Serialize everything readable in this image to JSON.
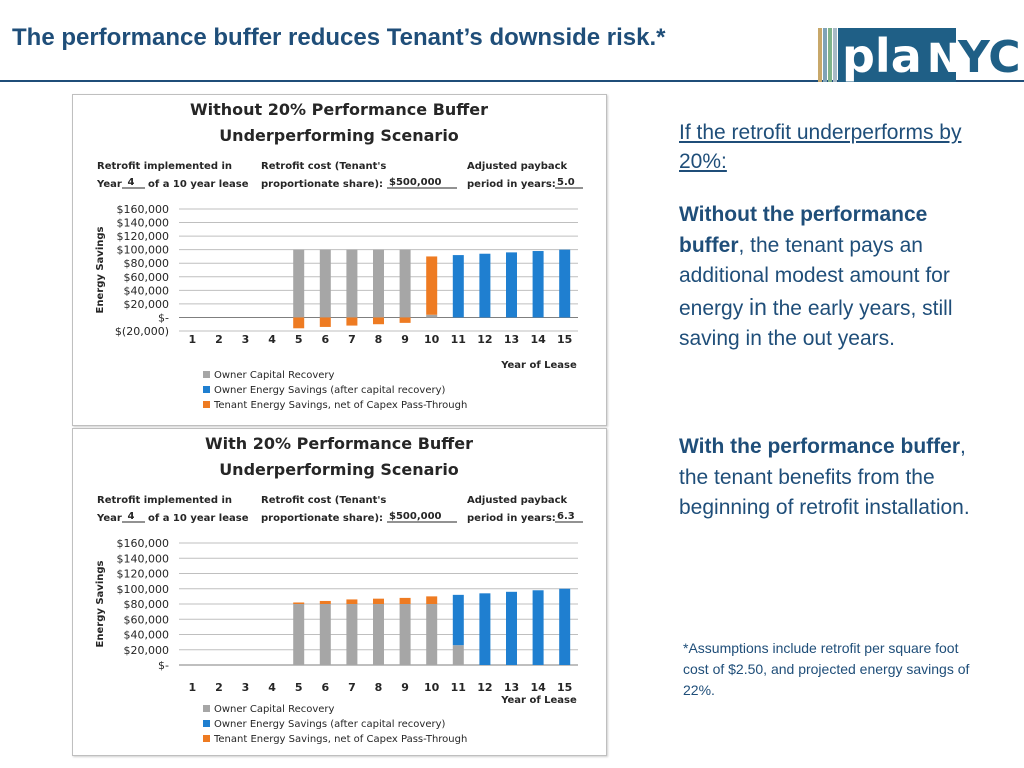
{
  "slide": {
    "title": "The performance buffer reduces Tenant’s downside risk.*",
    "logo": {
      "part1": "pla",
      "part2": "N",
      "part3": "YC",
      "stripe_colors": [
        "#c8a86a",
        "#7fa3b8",
        "#7fb28a",
        "#a8b9c6"
      ],
      "box_color": "#1f5f86"
    }
  },
  "side_text": {
    "question": "If the retrofit underperforms by 20%:",
    "para1_bold": "Without the performance buffer",
    "para1_a": ", the tenant pays an additional modest amount for energy ",
    "para1_in": "in",
    "para1_b": " the early years, still saving in the out years.",
    "para2_bold": "With the performance buffer",
    "para2_rest": ", the tenant benefits from the beginning of retrofit installation.",
    "footnote": "*Assumptions include retrofit per square foot cost of $2.50, and projected energy savings of 22%."
  },
  "chart_data": [
    {
      "type": "bar",
      "stacked": true,
      "title_line1": "Without 20% Performance Buffer",
      "title_line2": "Underperforming Scenario",
      "info": {
        "c1_l1": "Retrofit implemented in",
        "c1_l2a": "Year",
        "c1_value": "4",
        "c1_l2b": "of a 10 year lease",
        "c2_l1": "Retrofit cost (Tenant's",
        "c2_l2a": "proportionate share):",
        "c2_value": "$500,000",
        "c3_l1": "Adjusted payback",
        "c3_l2a": "period in years:",
        "c3_value": "5.0"
      },
      "ylabel": "Energy Savings",
      "xlabel": "Year of Lease",
      "categories": [
        "1",
        "2",
        "3",
        "4",
        "5",
        "6",
        "7",
        "8",
        "9",
        "10",
        "11",
        "12",
        "13",
        "14",
        "15"
      ],
      "ylim": [
        -20000,
        160000
      ],
      "yticks": [
        160000,
        140000,
        120000,
        100000,
        80000,
        60000,
        40000,
        20000,
        0,
        -20000
      ],
      "ytick_labels": [
        "$160,000",
        "$140,000",
        "$120,000",
        "$100,000",
        "$80,000",
        "$60,000",
        "$40,000",
        "$20,000",
        "$-",
        "$(20,000)"
      ],
      "grid": true,
      "series": [
        {
          "name": "Owner Capital Recovery",
          "color": "#a6a6a6",
          "values": [
            0,
            0,
            0,
            0,
            100000,
            100000,
            100000,
            100000,
            100000,
            4000,
            0,
            0,
            0,
            0,
            0
          ]
        },
        {
          "name": "Owner Energy Savings (after capital recovery)",
          "color": "#1f7fd0",
          "values": [
            0,
            0,
            0,
            0,
            0,
            0,
            0,
            0,
            0,
            0,
            92000,
            94000,
            96000,
            98000,
            100000
          ]
        },
        {
          "name": "Tenant Energy Savings, net of Capex Pass-Through",
          "color": "#ee7b22",
          "values": [
            0,
            0,
            0,
            0,
            -16000,
            -14000,
            -12000,
            -10000,
            -8000,
            86000,
            0,
            0,
            0,
            0,
            0
          ]
        }
      ],
      "legend": "bottom-left"
    },
    {
      "type": "bar",
      "stacked": true,
      "title_line1": "With 20% Performance Buffer",
      "title_line2": "Underperforming Scenario",
      "info": {
        "c1_l1": "Retrofit implemented in",
        "c1_l2a": "Year",
        "c1_value": "4",
        "c1_l2b": "of a 10 year lease",
        "c2_l1": "Retrofit cost (Tenant's",
        "c2_l2a": "proportionate share):",
        "c2_value": "$500,000",
        "c3_l1": "Adjusted payback",
        "c3_l2a": "period in years:",
        "c3_value": "6.3"
      },
      "ylabel": "Energy Savings",
      "xlabel": "Year of Lease",
      "categories": [
        "1",
        "2",
        "3",
        "4",
        "5",
        "6",
        "7",
        "8",
        "9",
        "10",
        "11",
        "12",
        "13",
        "14",
        "15"
      ],
      "ylim": [
        0,
        160000
      ],
      "yticks": [
        160000,
        140000,
        120000,
        100000,
        80000,
        60000,
        40000,
        20000,
        0
      ],
      "ytick_labels": [
        "$160,000",
        "$140,000",
        "$120,000",
        "$100,000",
        "$80,000",
        "$60,000",
        "$40,000",
        "$20,000",
        "$-"
      ],
      "grid": true,
      "series": [
        {
          "name": "Owner Capital Recovery",
          "color": "#a6a6a6",
          "values": [
            0,
            0,
            0,
            0,
            80000,
            80000,
            80000,
            80000,
            80000,
            80000,
            26000,
            0,
            0,
            0,
            0
          ]
        },
        {
          "name": "Owner Energy Savings (after capital recovery)",
          "color": "#1f7fd0",
          "values": [
            0,
            0,
            0,
            0,
            0,
            0,
            0,
            0,
            0,
            0,
            66000,
            94000,
            96000,
            98000,
            100000
          ]
        },
        {
          "name": "Tenant Energy Savings, net of Capex Pass-Through",
          "color": "#ee7b22",
          "values": [
            0,
            0,
            0,
            0,
            2000,
            4000,
            6000,
            7000,
            8000,
            10000,
            0,
            0,
            0,
            0,
            0
          ]
        }
      ],
      "legend": "bottom-left"
    }
  ]
}
